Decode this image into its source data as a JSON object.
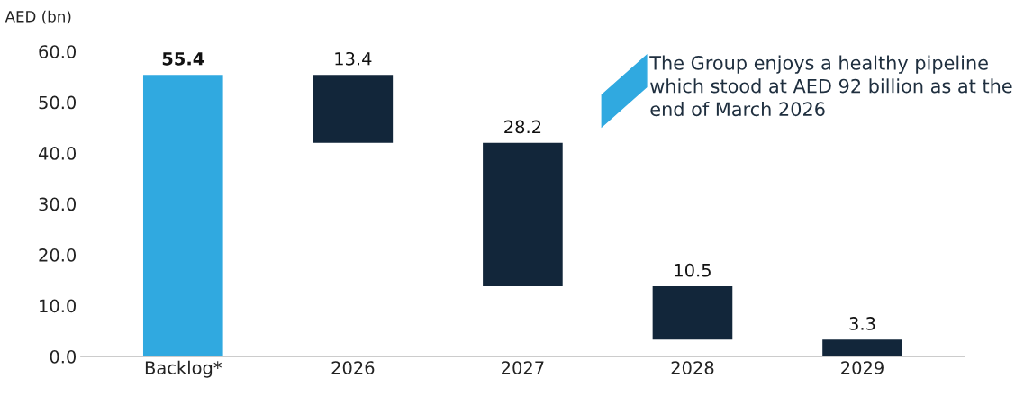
{
  "chart_data": {
    "type": "bar",
    "ylabel": "AED (bn)",
    "categories": [
      "Backlog*",
      "2026",
      "2027",
      "2028",
      "2029"
    ],
    "values": [
      55.4,
      13.4,
      28.2,
      10.5,
      3.3
    ],
    "base": [
      0,
      42.0,
      13.8,
      3.3,
      0
    ],
    "colors": [
      "#30a9e0",
      "#12263a",
      "#12263a",
      "#12263a",
      "#12263a"
    ],
    "ylim": [
      0,
      60
    ],
    "yticks": [
      {
        "value": 0,
        "label": "0.0"
      },
      {
        "value": 10,
        "label": "10.0"
      },
      {
        "value": 20,
        "label": "20.0"
      },
      {
        "value": 30,
        "label": "30.0"
      },
      {
        "value": 40,
        "label": "40.0"
      },
      {
        "value": 50,
        "label": "50.0"
      },
      {
        "value": 60,
        "label": "60.0"
      }
    ],
    "data_labels": true,
    "grid": false,
    "legend": false,
    "annotations": [
      "The Group enjoys a healthy pipeline which stood at AED 92 billion as at the end of March 2026"
    ]
  }
}
